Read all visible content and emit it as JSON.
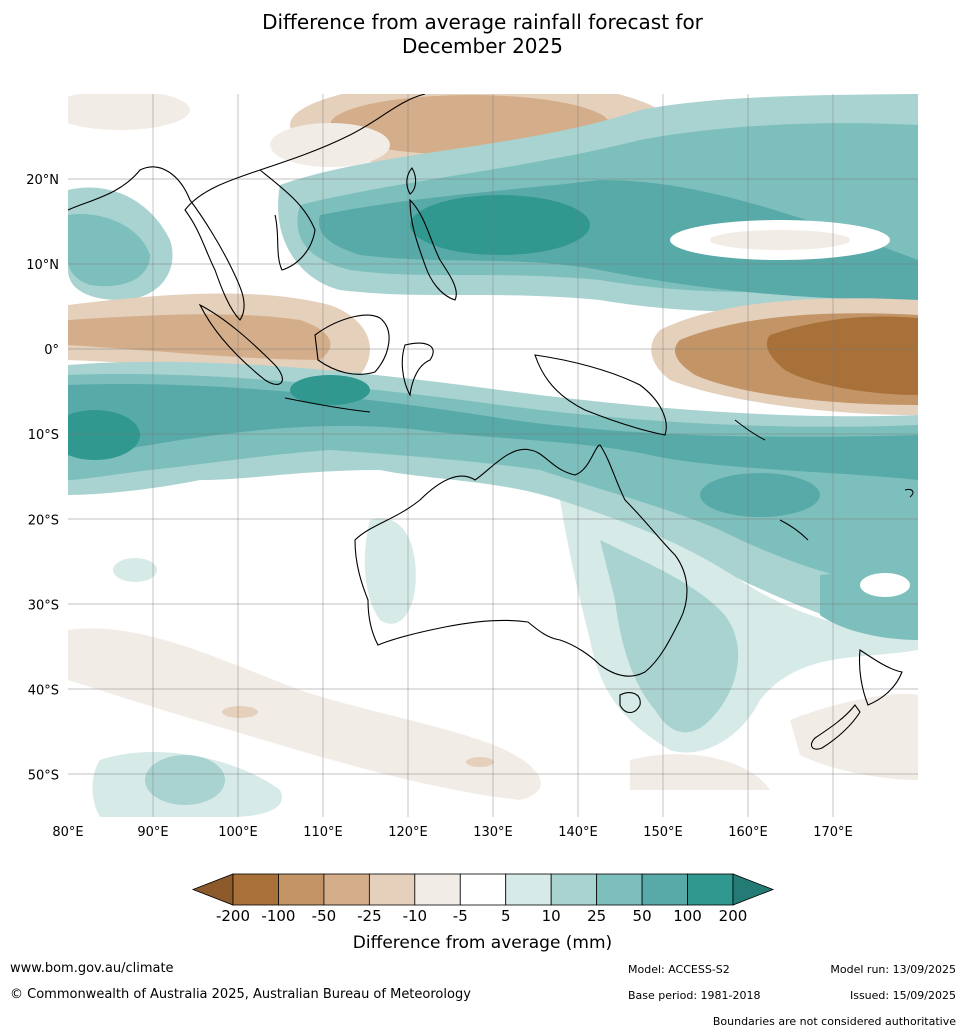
{
  "title": {
    "line1": "Difference from average rainfall forecast for",
    "line2": "December 2025"
  },
  "map": {
    "lon_ticks": [
      "80°E",
      "90°E",
      "100°E",
      "110°E",
      "120°E",
      "130°E",
      "140°E",
      "150°E",
      "160°E",
      "170°E"
    ],
    "lat_ticks": [
      "20°N",
      "10°N",
      "0°",
      "10°S",
      "20°S",
      "30°S",
      "40°S",
      "50°S"
    ],
    "extent": {
      "lon": [
        80,
        180
      ],
      "lat": [
        -55,
        30
      ]
    }
  },
  "colorbar": {
    "title": "Difference from average (mm)",
    "labels": [
      "-200",
      "-100",
      "-50",
      "-25",
      "-10",
      "-5",
      "5",
      "10",
      "25",
      "50",
      "100",
      "200"
    ],
    "colors": [
      "#8c5a2b",
      "#a87139",
      "#c39465",
      "#d4ae8a",
      "#e5d0bc",
      "#f2ece6",
      "#ffffff",
      "#d6eae8",
      "#a8d3d1",
      "#7dbfbc",
      "#58aaa8",
      "#30988f",
      "#247a75"
    ]
  },
  "footer": {
    "url": "www.bom.gov.au/climate",
    "copyright": "© Commonwealth of Australia 2025, Australian Bureau of Meteorology",
    "model": "Model: ACCESS-S2",
    "base_period": "Base period: 1981-2018",
    "model_run": "Model run: 13/09/2025",
    "issued": "Issued: 15/09/2025",
    "disclaimer": "Boundaries are not considered authoritative"
  }
}
